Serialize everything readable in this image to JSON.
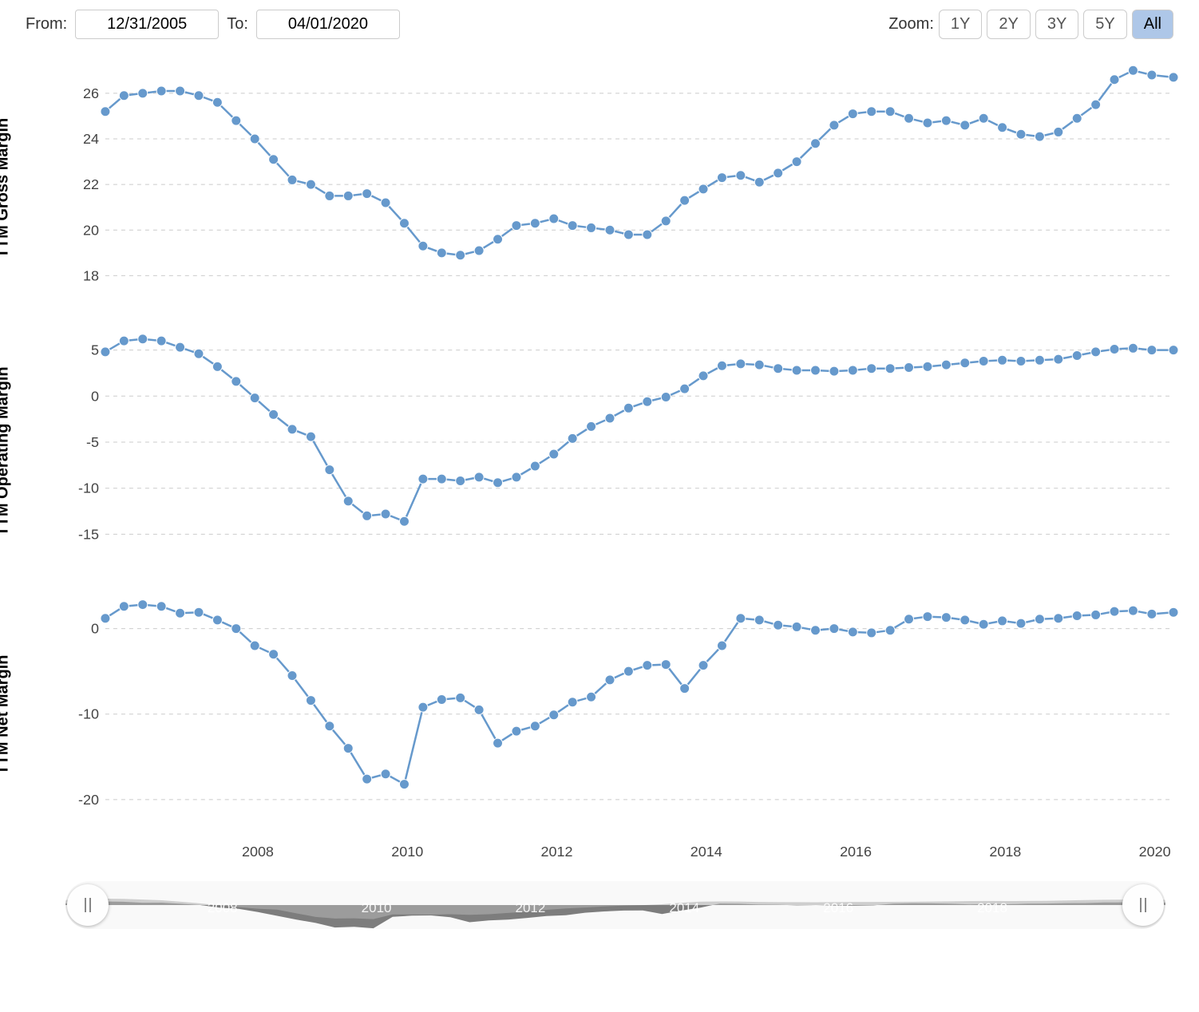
{
  "controls": {
    "from_label": "From:",
    "to_label": "To:",
    "from_value": "12/31/2005",
    "to_value": "04/01/2020",
    "zoom_label": "Zoom:",
    "zoom_buttons": [
      "1Y",
      "2Y",
      "3Y",
      "5Y",
      "All"
    ],
    "zoom_active": "All"
  },
  "x_axis": {
    "min_year": 2005.96,
    "max_year": 2020.25,
    "ticks": [
      2008,
      2010,
      2012,
      2014,
      2016,
      2018,
      2020
    ]
  },
  "series_color": "#6699cc",
  "point_radius": 6,
  "background_color": "#ffffff",
  "grid_dash": "5,5",
  "charts": [
    {
      "label": "TTM Gross Margin",
      "ymin": 17,
      "ymax": 27.5,
      "yticks": [
        18,
        20,
        22,
        24,
        26
      ],
      "data": [
        [
          2005.96,
          25.2
        ],
        [
          2006.21,
          25.9
        ],
        [
          2006.46,
          26.0
        ],
        [
          2006.71,
          26.1
        ],
        [
          2006.96,
          26.1
        ],
        [
          2007.21,
          25.9
        ],
        [
          2007.46,
          25.6
        ],
        [
          2007.71,
          24.8
        ],
        [
          2007.96,
          24.0
        ],
        [
          2008.21,
          23.1
        ],
        [
          2008.46,
          22.2
        ],
        [
          2008.71,
          22.0
        ],
        [
          2008.96,
          21.5
        ],
        [
          2009.21,
          21.5
        ],
        [
          2009.46,
          21.6
        ],
        [
          2009.71,
          21.2
        ],
        [
          2009.96,
          20.3
        ],
        [
          2010.21,
          19.3
        ],
        [
          2010.46,
          19.0
        ],
        [
          2010.71,
          18.9
        ],
        [
          2010.96,
          19.1
        ],
        [
          2011.21,
          19.6
        ],
        [
          2011.46,
          20.2
        ],
        [
          2011.71,
          20.3
        ],
        [
          2011.96,
          20.5
        ],
        [
          2012.21,
          20.2
        ],
        [
          2012.46,
          20.1
        ],
        [
          2012.71,
          20.0
        ],
        [
          2012.96,
          19.8
        ],
        [
          2013.21,
          19.8
        ],
        [
          2013.46,
          20.4
        ],
        [
          2013.71,
          21.3
        ],
        [
          2013.96,
          21.8
        ],
        [
          2014.21,
          22.3
        ],
        [
          2014.46,
          22.4
        ],
        [
          2014.71,
          22.1
        ],
        [
          2014.96,
          22.5
        ],
        [
          2015.21,
          23.0
        ],
        [
          2015.46,
          23.8
        ],
        [
          2015.71,
          24.6
        ],
        [
          2015.96,
          25.1
        ],
        [
          2016.21,
          25.2
        ],
        [
          2016.46,
          25.2
        ],
        [
          2016.71,
          24.9
        ],
        [
          2016.96,
          24.7
        ],
        [
          2017.21,
          24.8
        ],
        [
          2017.46,
          24.6
        ],
        [
          2017.71,
          24.9
        ],
        [
          2017.96,
          24.5
        ],
        [
          2018.21,
          24.2
        ],
        [
          2018.46,
          24.1
        ],
        [
          2018.71,
          24.3
        ],
        [
          2018.96,
          24.9
        ],
        [
          2019.21,
          25.5
        ],
        [
          2019.46,
          26.6
        ],
        [
          2019.71,
          27.0
        ],
        [
          2019.96,
          26.8
        ],
        [
          2020.25,
          26.7
        ]
      ]
    },
    {
      "label": "TTM Operating Margin",
      "ymin": -18,
      "ymax": 8,
      "yticks": [
        -15,
        -10,
        -5,
        0,
        5
      ],
      "data": [
        [
          2005.96,
          4.8
        ],
        [
          2006.21,
          6.0
        ],
        [
          2006.46,
          6.2
        ],
        [
          2006.71,
          6.0
        ],
        [
          2006.96,
          5.3
        ],
        [
          2007.21,
          4.6
        ],
        [
          2007.46,
          3.2
        ],
        [
          2007.71,
          1.6
        ],
        [
          2007.96,
          -0.2
        ],
        [
          2008.21,
          -2.0
        ],
        [
          2008.46,
          -3.6
        ],
        [
          2008.71,
          -4.4
        ],
        [
          2008.96,
          -8.0
        ],
        [
          2009.21,
          -11.4
        ],
        [
          2009.46,
          -13.0
        ],
        [
          2009.71,
          -12.8
        ],
        [
          2009.96,
          -13.6
        ],
        [
          2010.21,
          -9.0
        ],
        [
          2010.46,
          -9.0
        ],
        [
          2010.71,
          -9.2
        ],
        [
          2010.96,
          -8.8
        ],
        [
          2011.21,
          -9.4
        ],
        [
          2011.46,
          -8.8
        ],
        [
          2011.71,
          -7.6
        ],
        [
          2011.96,
          -6.3
        ],
        [
          2012.21,
          -4.6
        ],
        [
          2012.46,
          -3.3
        ],
        [
          2012.71,
          -2.4
        ],
        [
          2012.96,
          -1.3
        ],
        [
          2013.21,
          -0.6
        ],
        [
          2013.46,
          -0.1
        ],
        [
          2013.71,
          0.8
        ],
        [
          2013.96,
          2.2
        ],
        [
          2014.21,
          3.3
        ],
        [
          2014.46,
          3.5
        ],
        [
          2014.71,
          3.4
        ],
        [
          2014.96,
          3.0
        ],
        [
          2015.21,
          2.8
        ],
        [
          2015.46,
          2.8
        ],
        [
          2015.71,
          2.7
        ],
        [
          2015.96,
          2.8
        ],
        [
          2016.21,
          3.0
        ],
        [
          2016.46,
          3.0
        ],
        [
          2016.71,
          3.1
        ],
        [
          2016.96,
          3.2
        ],
        [
          2017.21,
          3.4
        ],
        [
          2017.46,
          3.6
        ],
        [
          2017.71,
          3.8
        ],
        [
          2017.96,
          3.9
        ],
        [
          2018.21,
          3.8
        ],
        [
          2018.46,
          3.9
        ],
        [
          2018.71,
          4.0
        ],
        [
          2018.96,
          4.4
        ],
        [
          2019.21,
          4.8
        ],
        [
          2019.46,
          5.1
        ],
        [
          2019.71,
          5.2
        ],
        [
          2019.96,
          5.0
        ],
        [
          2020.25,
          5.0
        ]
      ]
    },
    {
      "label": "TTM Net Margin",
      "ymin": -23,
      "ymax": 5,
      "yticks": [
        -20,
        -10,
        0
      ],
      "data": [
        [
          2005.96,
          1.2
        ],
        [
          2006.21,
          2.6
        ],
        [
          2006.46,
          2.8
        ],
        [
          2006.71,
          2.6
        ],
        [
          2006.96,
          1.8
        ],
        [
          2007.21,
          1.9
        ],
        [
          2007.46,
          1.0
        ],
        [
          2007.71,
          0.0
        ],
        [
          2007.96,
          -2.0
        ],
        [
          2008.21,
          -3.0
        ],
        [
          2008.46,
          -5.5
        ],
        [
          2008.71,
          -8.4
        ],
        [
          2008.96,
          -11.4
        ],
        [
          2009.21,
          -14.0
        ],
        [
          2009.46,
          -17.6
        ],
        [
          2009.71,
          -17.0
        ],
        [
          2009.96,
          -18.2
        ],
        [
          2010.21,
          -9.2
        ],
        [
          2010.46,
          -8.3
        ],
        [
          2010.71,
          -8.1
        ],
        [
          2010.96,
          -9.5
        ],
        [
          2011.21,
          -13.4
        ],
        [
          2011.46,
          -12.0
        ],
        [
          2011.71,
          -11.4
        ],
        [
          2011.96,
          -10.1
        ],
        [
          2012.21,
          -8.6
        ],
        [
          2012.46,
          -8.0
        ],
        [
          2012.71,
          -6.0
        ],
        [
          2012.96,
          -5.0
        ],
        [
          2013.21,
          -4.3
        ],
        [
          2013.46,
          -4.2
        ],
        [
          2013.71,
          -7.0
        ],
        [
          2013.96,
          -4.3
        ],
        [
          2014.21,
          -2.0
        ],
        [
          2014.46,
          1.2
        ],
        [
          2014.71,
          1.0
        ],
        [
          2014.96,
          0.4
        ],
        [
          2015.21,
          0.2
        ],
        [
          2015.46,
          -0.2
        ],
        [
          2015.71,
          0.0
        ],
        [
          2015.96,
          -0.4
        ],
        [
          2016.21,
          -0.5
        ],
        [
          2016.46,
          -0.2
        ],
        [
          2016.71,
          1.1
        ],
        [
          2016.96,
          1.4
        ],
        [
          2017.21,
          1.3
        ],
        [
          2017.46,
          1.0
        ],
        [
          2017.71,
          0.5
        ],
        [
          2017.96,
          0.9
        ],
        [
          2018.21,
          0.6
        ],
        [
          2018.46,
          1.1
        ],
        [
          2018.71,
          1.2
        ],
        [
          2018.96,
          1.5
        ],
        [
          2019.21,
          1.6
        ],
        [
          2019.46,
          2.0
        ],
        [
          2019.71,
          2.1
        ],
        [
          2019.96,
          1.7
        ],
        [
          2020.25,
          1.9
        ]
      ]
    }
  ],
  "range_slider": {
    "area_color_dark": "#767676",
    "area_color_light": "#b0b0b0",
    "handle_left_pct": 0,
    "handle_right_pct": 100,
    "ticks": [
      2008,
      2010,
      2012,
      2014,
      2016,
      2018,
      2020
    ]
  }
}
